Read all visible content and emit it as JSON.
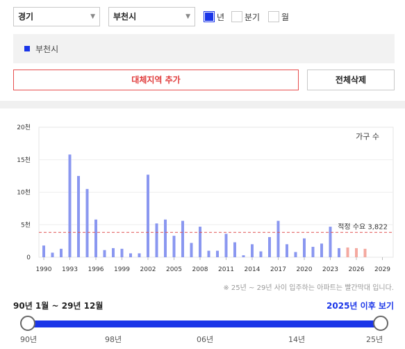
{
  "filters": {
    "region": "경기",
    "city": "부천시",
    "period_options": [
      {
        "label": "년",
        "checked": true
      },
      {
        "label": "분기",
        "checked": false
      },
      {
        "label": "월",
        "checked": false
      }
    ]
  },
  "legend": {
    "label": "부천시",
    "color": "#1a35e8"
  },
  "buttons": {
    "add_region": "대체지역 추가",
    "delete_all": "전체삭제"
  },
  "chart_data": {
    "type": "bar",
    "series_label": "가구 수",
    "y_ticks": [
      "20천",
      "15천",
      "10천",
      "5천",
      "0"
    ],
    "ylim": [
      0,
      20000
    ],
    "x_tick_labels": [
      "1990",
      "1993",
      "1996",
      "1999",
      "2002",
      "2005",
      "2008",
      "2011",
      "2014",
      "2017",
      "2020",
      "2023",
      "2026",
      "2029"
    ],
    "years": [
      1990,
      1991,
      1992,
      1993,
      1994,
      1995,
      1996,
      1997,
      1998,
      1999,
      2000,
      2001,
      2002,
      2003,
      2004,
      2005,
      2006,
      2007,
      2008,
      2009,
      2010,
      2011,
      2012,
      2013,
      2014,
      2015,
      2016,
      2017,
      2018,
      2019,
      2020,
      2021,
      2022,
      2023,
      2024,
      2025,
      2026,
      2027,
      2028
    ],
    "values": [
      1800,
      700,
      1300,
      15800,
      12500,
      10500,
      5800,
      1100,
      1400,
      1300,
      600,
      600,
      12700,
      5200,
      5800,
      3300,
      5600,
      2200,
      4700,
      1000,
      1000,
      3600,
      2300,
      300,
      2000,
      900,
      3100,
      5600,
      2000,
      800,
      2900,
      1600,
      2100,
      4700,
      1400,
      1500,
      1400,
      1300,
      0
    ],
    "future_from_year": 2025,
    "colors": {
      "past": "#8a97f0",
      "future": "#f4a9a0"
    },
    "reference_line": {
      "value": 3822,
      "label": "적정 수요 3,822",
      "color": "#e05050"
    },
    "grid": true
  },
  "note": "※ 25년 ~ 29년 사이 입주하는 아파트는 빨간막대 입니다.",
  "range": {
    "label": "90년 1월 ~ 29년 12월",
    "after_link": "2025년 이후 보기"
  },
  "slider_labels": [
    "90년",
    "98년",
    "06년",
    "14년",
    "25년"
  ]
}
